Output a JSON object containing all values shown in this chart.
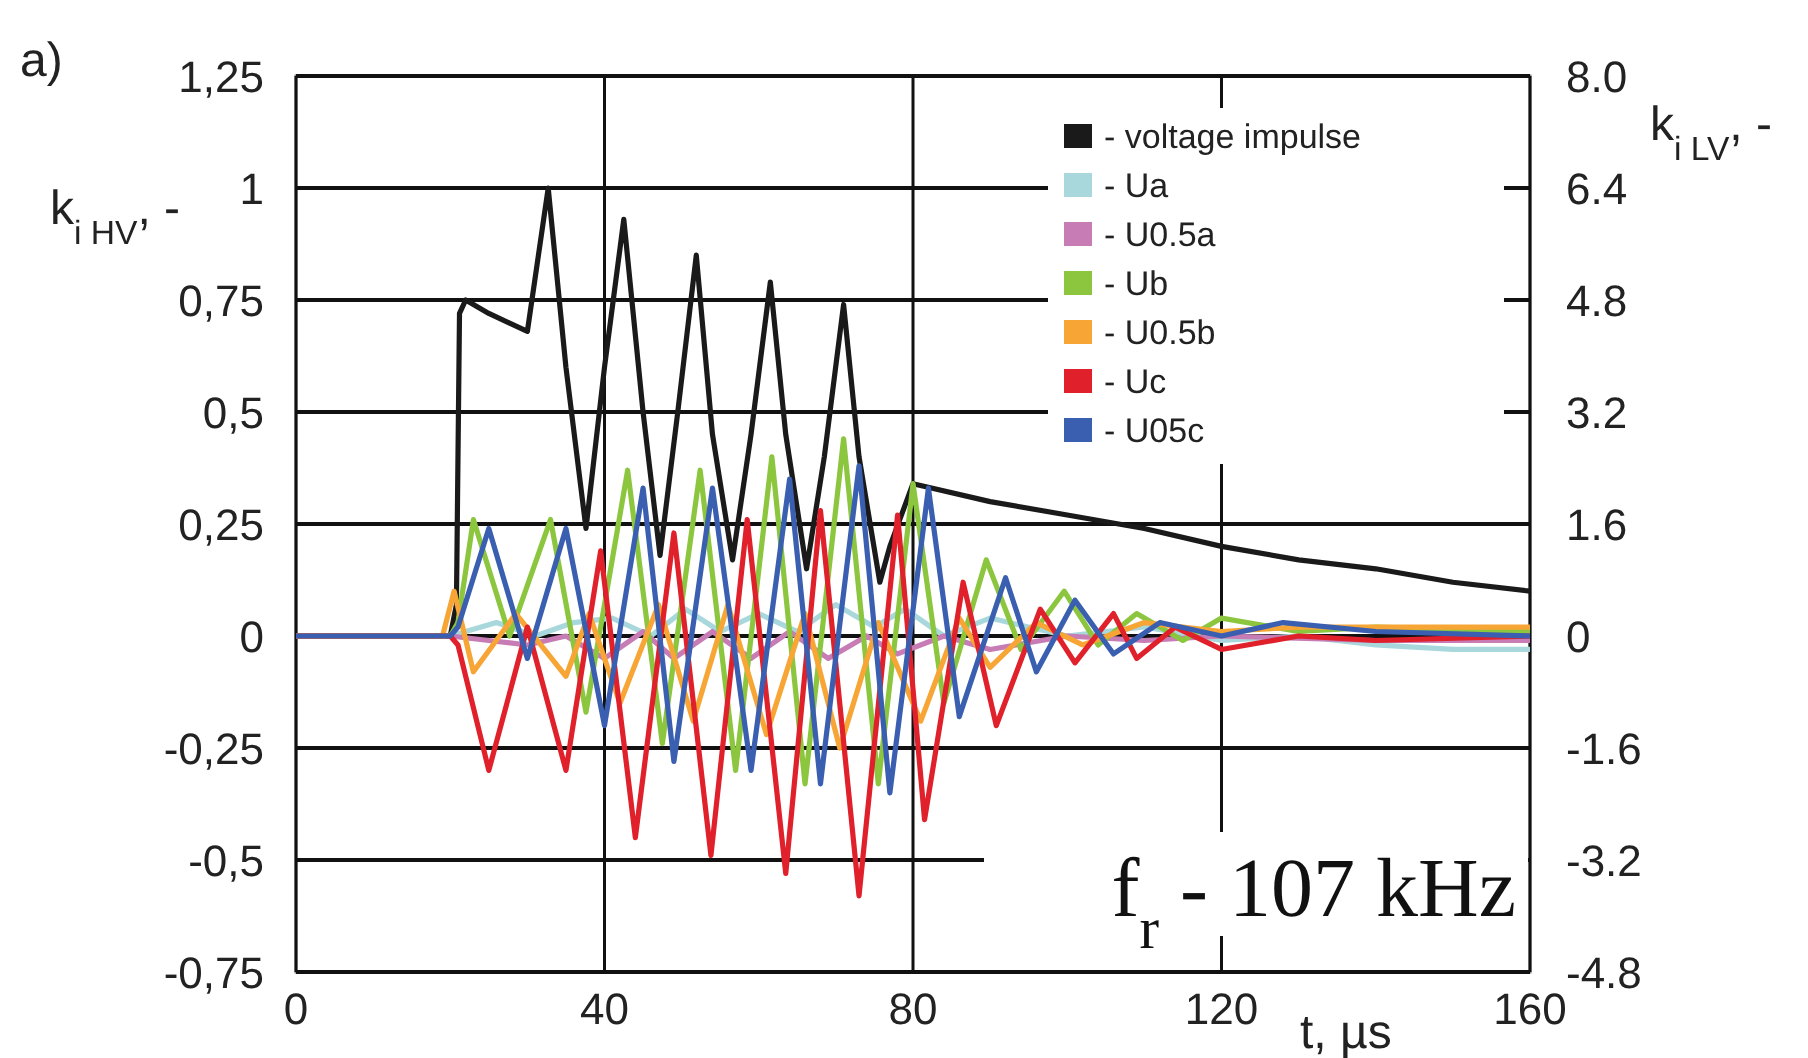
{
  "chart_data": {
    "type": "line",
    "xlabel": "t, µs",
    "ylabel": "k$_{i HV}$, -",
    "y2label": "k$_{i LV}$, -",
    "annotations": [
      "a)",
      "f$_{r}$ - 107 kHz"
    ],
    "xlim": [
      0,
      160
    ],
    "xticks": [
      0,
      40,
      80,
      120,
      160
    ],
    "ylim": [
      -0.75,
      1.25
    ],
    "yticks": [
      {
        "value": 1.25,
        "label": "1,25"
      },
      1,
      {
        "value": 0.75,
        "label": "0,75"
      },
      {
        "value": 0.5,
        "label": "0,5"
      },
      {
        "value": 0.25,
        "label": "0,25"
      },
      0,
      {
        "value": -0.25,
        "label": "-0,25"
      },
      {
        "value": -0.5,
        "label": "-0,5"
      },
      {
        "value": -0.75,
        "label": "-0,75"
      }
    ],
    "y2lim": [
      -4.8,
      8
    ],
    "y2ticks": [
      {
        "value": 8,
        "label": "8.0"
      },
      6.4,
      4.8,
      3.2,
      1.6,
      0,
      -1.6,
      -3.2,
      -4.8
    ],
    "grid": true,
    "legend": "top right",
    "series": [
      {
        "name": "- voltage impulse",
        "color": "#1a1a1a",
        "x": [
          0,
          20,
          20.8,
          21.2,
          22,
          25,
          30,
          32.7,
          35,
          37.6,
          40,
          42.5,
          45,
          47.2,
          49.5,
          51.9,
          54,
          56.6,
          59,
          61.5,
          63.5,
          66.2,
          68.5,
          71,
          73,
          75.7,
          77,
          80,
          90,
          100,
          110,
          120,
          130,
          140,
          150,
          160
        ],
        "values": [
          0,
          0,
          0.07,
          0.72,
          0.75,
          0.72,
          0.68,
          1.0,
          0.6,
          0.24,
          0.6,
          0.93,
          0.5,
          0.18,
          0.5,
          0.85,
          0.45,
          0.17,
          0.45,
          0.79,
          0.45,
          0.15,
          0.4,
          0.74,
          0.4,
          0.12,
          0.2,
          0.34,
          0.3,
          0.27,
          0.24,
          0.2,
          0.17,
          0.15,
          0.12,
          0.1
        ]
      },
      {
        "name": "- Ua",
        "color": "#a8d8dc",
        "x": [
          0,
          20,
          26,
          31,
          36,
          41,
          46,
          50.5,
          55,
          60,
          65,
          70,
          75,
          79,
          84,
          90,
          100,
          110,
          120,
          130,
          140,
          150,
          160
        ],
        "values": [
          0,
          0,
          0.03,
          0.0,
          0.03,
          0.04,
          0.0,
          0.06,
          0.01,
          0.05,
          0.01,
          0.07,
          0.02,
          0.06,
          0.0,
          0.04,
          0.0,
          0.02,
          -0.01,
          0.0,
          -0.02,
          -0.03,
          -0.03
        ]
      },
      {
        "name": "- U0.5a",
        "color": "#c77cb5",
        "x": [
          0,
          20,
          25,
          30,
          35,
          40,
          45,
          49,
          54,
          59,
          64,
          69,
          74,
          78,
          84,
          90,
          100,
          110,
          120,
          140,
          160
        ],
        "values": [
          0,
          0,
          -0.01,
          -0.02,
          0.0,
          -0.05,
          0.01,
          -0.05,
          0.01,
          -0.05,
          0.01,
          -0.05,
          0.0,
          -0.04,
          0.0,
          -0.03,
          0.0,
          -0.01,
          0.0,
          -0.01,
          -0.01
        ]
      },
      {
        "name": "- Ub",
        "color": "#8cc63f",
        "x": [
          0,
          20,
          21,
          23,
          27.7,
          33,
          37.6,
          43,
          47.5,
          52.4,
          57,
          61.7,
          66,
          71,
          75.5,
          80,
          84,
          89.5,
          94,
          99.6,
          104,
          109,
          115,
          120,
          130,
          140,
          160
        ],
        "values": [
          0,
          0,
          0.03,
          0.26,
          0.0,
          0.26,
          -0.17,
          0.37,
          -0.24,
          0.37,
          -0.3,
          0.4,
          -0.33,
          0.44,
          -0.33,
          0.34,
          -0.15,
          0.17,
          -0.03,
          0.1,
          -0.02,
          0.05,
          -0.01,
          0.04,
          0.01,
          0.02,
          0.01
        ]
      },
      {
        "name": "- U0.5b",
        "color": "#f7a535",
        "x": [
          0,
          19,
          20.5,
          23,
          28.5,
          35,
          38,
          42,
          47,
          51.5,
          56,
          61,
          66,
          70.5,
          75.5,
          81,
          86,
          90,
          96,
          102,
          110,
          120,
          130,
          140,
          150,
          160
        ],
        "values": [
          0,
          0,
          0.1,
          -0.08,
          0.05,
          -0.09,
          0.05,
          -0.15,
          0.07,
          -0.19,
          0.07,
          -0.22,
          0.05,
          -0.25,
          0.03,
          -0.19,
          0.04,
          -0.07,
          0.03,
          -0.02,
          0.03,
          0.01,
          0.02,
          0.02,
          0.02,
          0.02
        ]
      },
      {
        "name": "- Uc",
        "color": "#e0202a",
        "x": [
          0,
          20,
          21,
          25,
          30,
          35,
          39.5,
          44,
          49,
          53.8,
          58.5,
          63.5,
          68,
          73,
          78,
          81.5,
          86.5,
          90.8,
          96.5,
          101,
          106,
          109,
          114,
          120,
          130,
          140,
          160
        ],
        "values": [
          0,
          0,
          -0.02,
          -0.3,
          0.02,
          -0.3,
          0.19,
          -0.45,
          0.23,
          -0.49,
          0.26,
          -0.53,
          0.28,
          -0.58,
          0.27,
          -0.41,
          0.12,
          -0.2,
          0.06,
          -0.06,
          0.05,
          -0.05,
          0.02,
          -0.03,
          0.0,
          -0.01,
          0.0
        ]
      },
      {
        "name": "- U05c",
        "color": "#3a5fb0",
        "x": [
          0,
          20,
          21,
          25,
          30,
          35,
          40,
          45,
          49,
          54,
          59,
          64,
          68,
          73,
          77,
          82,
          86,
          92,
          96,
          101,
          106,
          112,
          120,
          128,
          140,
          160
        ],
        "values": [
          0,
          0,
          0.02,
          0.24,
          -0.05,
          0.24,
          -0.2,
          0.33,
          -0.28,
          0.33,
          -0.3,
          0.35,
          -0.33,
          0.38,
          -0.35,
          0.33,
          -0.18,
          0.13,
          -0.08,
          0.08,
          -0.04,
          0.03,
          0.0,
          0.03,
          0.01,
          0.0
        ]
      }
    ]
  }
}
